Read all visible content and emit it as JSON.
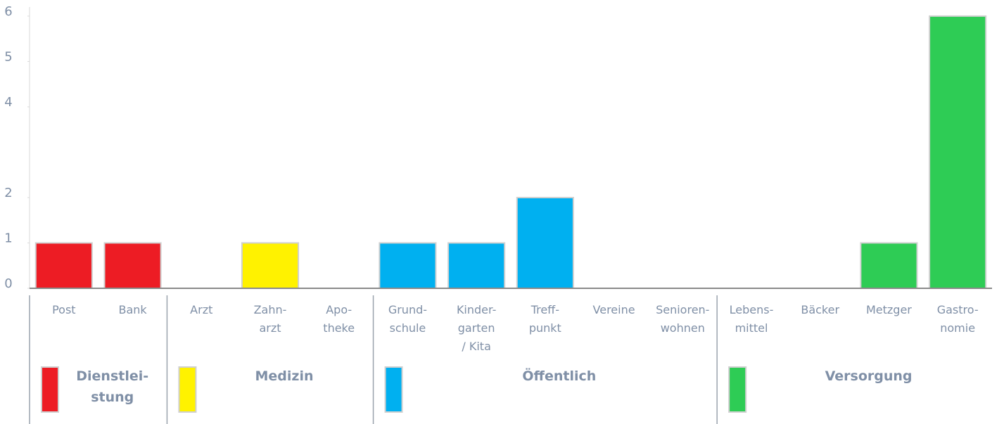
{
  "chart_data": {
    "type": "bar",
    "categories": [
      "Post",
      "Bank",
      "Arzt",
      "Zahn-\narzt",
      "Apo-\ntheke",
      "Grund-\nschule",
      "Kinder-\ngarten\n/ Kita",
      "Treff-\npunkt",
      "Vereine",
      "Senioren-\nwohnen",
      "Lebens-\nmittel",
      "Bäcker",
      "Metzger",
      "Gastro-\nnomie"
    ],
    "series": [
      {
        "name": "Dienstlei-\nstung",
        "color": "#ed1c24",
        "values": [
          1,
          1,
          null,
          null,
          null,
          null,
          null,
          null,
          null,
          null,
          null,
          null,
          null,
          null
        ]
      },
      {
        "name": "Medizin",
        "color": "#fff200",
        "values": [
          null,
          null,
          0,
          1,
          0,
          null,
          null,
          null,
          null,
          null,
          null,
          null,
          null,
          null
        ]
      },
      {
        "name": "Öffentlich",
        "color": "#00b0f0",
        "values": [
          null,
          null,
          null,
          null,
          null,
          1,
          1,
          2,
          0,
          0,
          null,
          null,
          null,
          null
        ]
      },
      {
        "name": "Versorgung",
        "color": "#2ecc55",
        "values": [
          null,
          null,
          null,
          null,
          null,
          null,
          null,
          null,
          null,
          null,
          0,
          0,
          1,
          6
        ]
      }
    ],
    "ylim": [
      0,
      6.2
    ],
    "yticks": [
      0,
      1,
      2,
      4,
      5,
      6
    ],
    "grid": false
  }
}
